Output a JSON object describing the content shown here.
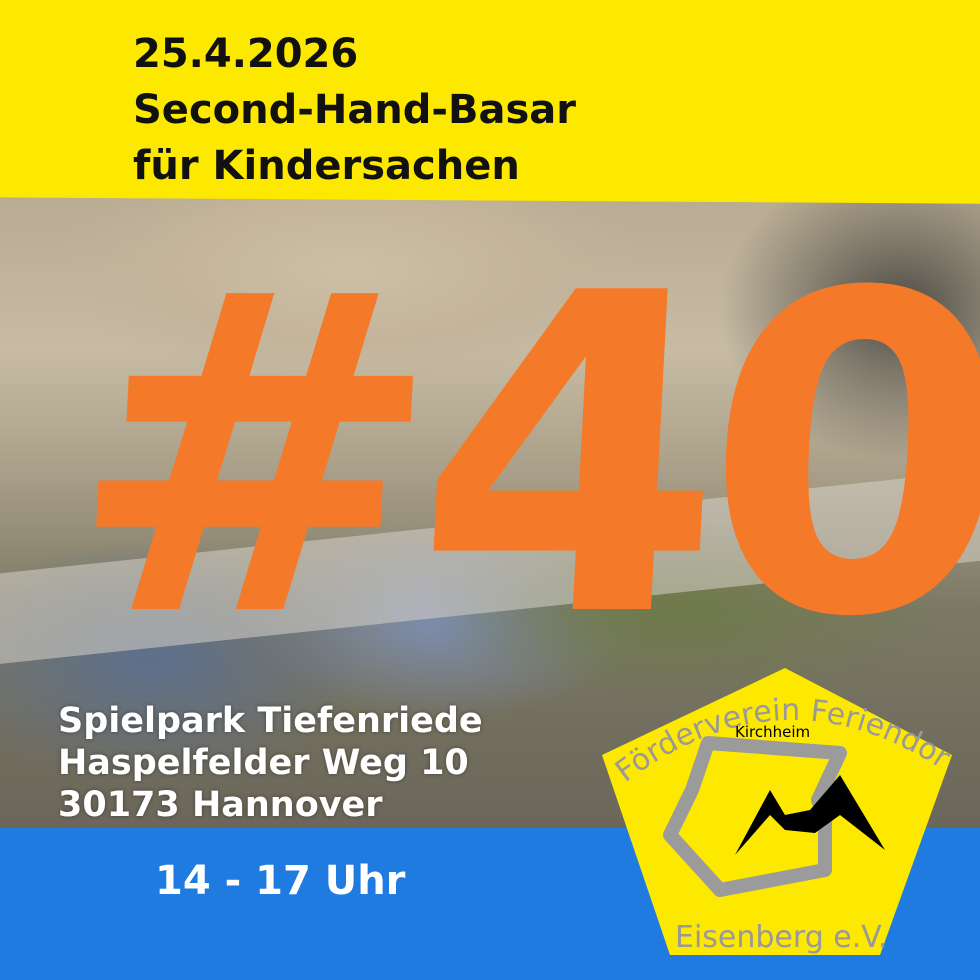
{
  "header": {
    "date": "25.4.2026",
    "line1": "Second-Hand-Basar",
    "line2": "für Kindersachen"
  },
  "badge": {
    "text": "#40",
    "color": "#f47a2a"
  },
  "location": {
    "line1": "Spielpark Tiefenriede",
    "line2": "Haspelfelder Weg 10",
    "line3": "30173 Hannover"
  },
  "time": "14 - 17 Uhr",
  "logo": {
    "arc_text": "Förderverein Feriendorf",
    "inner_text": "Kirchheim",
    "bottom_text": "Eisenberg e.V."
  },
  "colors": {
    "yellow": "#fde800",
    "blue": "#1f7be0",
    "orange": "#f47a2a"
  }
}
